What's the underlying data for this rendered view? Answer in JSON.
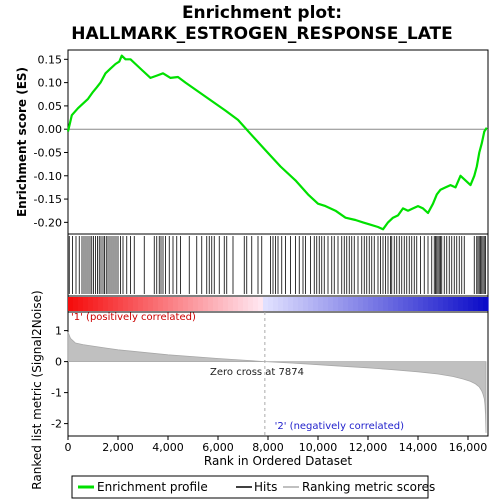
{
  "chart_data": {
    "type": "line",
    "title_lines": [
      "Enrichment plot:",
      "HALLMARK_ESTROGEN_RESPONSE_LATE"
    ],
    "ylabel_top": "Enrichment score (ES)",
    "ylabel_bottom": "Ranked list metric (Signal2Noise)",
    "xlabel": "Rank in Ordered Dataset",
    "xlim": [
      0,
      16800
    ],
    "es_ylim": [
      -0.225,
      0.17
    ],
    "metric_ylim": [
      -2.4,
      1.6
    ],
    "x_ticks": [
      0,
      2000,
      4000,
      6000,
      8000,
      10000,
      12000,
      14000,
      16000
    ],
    "x_tick_labels": [
      "0",
      "2,000",
      "4,000",
      "6,000",
      "8,000",
      "10,000",
      "12,000",
      "14,000",
      "16,000"
    ],
    "es_ticks": [
      0.15,
      0.1,
      0.05,
      0.0,
      -0.05,
      -0.1,
      -0.15,
      -0.2
    ],
    "es_tick_labels": [
      "0.15",
      "0.10",
      "0.05",
      "0.00",
      "-0.05",
      "-0.10",
      "-0.15",
      "-0.20"
    ],
    "metric_ticks": [
      1,
      0,
      -1,
      -2
    ],
    "metric_tick_labels": [
      "1",
      "0",
      "-1",
      "-2"
    ],
    "zero_cross_rank": 7874,
    "zero_cross_label": "Zero cross at 7874",
    "positive_label": "'1' (positively correlated)",
    "negative_label": "'2' (negatively correlated)",
    "series": [
      {
        "name": "Enrichment profile",
        "color": "#00e000",
        "x": [
          0,
          150,
          400,
          600,
          800,
          1000,
          1150,
          1300,
          1500,
          1700,
          1900,
          2050,
          2150,
          2300,
          2500,
          2700,
          3000,
          3300,
          3550,
          3800,
          4100,
          4400,
          4700,
          5100,
          5500,
          5900,
          6300,
          6800,
          7300,
          7900,
          8500,
          9100,
          9600,
          10000,
          10300,
          10700,
          11100,
          11500,
          11800,
          12100,
          12400,
          12600,
          12800,
          13000,
          13200,
          13400,
          13600,
          13800,
          14000,
          14200,
          14400,
          14600,
          14750,
          14900,
          15100,
          15300,
          15500,
          15700,
          15900,
          16100,
          16250,
          16350,
          16450,
          16550,
          16650,
          16750
        ],
        "y": [
          -0.005,
          0.03,
          0.045,
          0.055,
          0.065,
          0.08,
          0.09,
          0.1,
          0.12,
          0.13,
          0.14,
          0.145,
          0.158,
          0.15,
          0.15,
          0.14,
          0.125,
          0.11,
          0.115,
          0.12,
          0.11,
          0.112,
          0.1,
          0.085,
          0.07,
          0.055,
          0.04,
          0.02,
          -0.01,
          -0.045,
          -0.08,
          -0.11,
          -0.14,
          -0.16,
          -0.165,
          -0.175,
          -0.19,
          -0.195,
          -0.2,
          -0.205,
          -0.21,
          -0.215,
          -0.2,
          -0.19,
          -0.185,
          -0.17,
          -0.175,
          -0.17,
          -0.165,
          -0.17,
          -0.18,
          -0.16,
          -0.14,
          -0.13,
          -0.125,
          -0.12,
          -0.125,
          -0.1,
          -0.11,
          -0.12,
          -0.1,
          -0.08,
          -0.05,
          -0.03,
          -0.005,
          0.003
        ]
      }
    ],
    "hits": [
      50,
      180,
      320,
      450,
      560,
      640,
      720,
      800,
      880,
      950,
      1020,
      1100,
      1180,
      1250,
      1320,
      1400,
      1460,
      1530,
      1600,
      1680,
      1760,
      1840,
      1920,
      2000,
      2100,
      2200,
      2350,
      2500,
      2650,
      3050,
      3450,
      3550,
      3650,
      3720,
      3800,
      3900,
      4050,
      4200,
      4350,
      4500,
      4850,
      5150,
      5350,
      5550,
      5650,
      5750,
      5850,
      6050,
      6250,
      6350,
      6600,
      7050,
      7150,
      7350,
      7600,
      7750,
      8100,
      8200,
      8300,
      8400,
      8550,
      8700,
      8900,
      9100,
      9250,
      9400,
      9500,
      9700,
      9850,
      9950,
      10050,
      10150,
      10250,
      10400,
      10550,
      10650,
      10800,
      10950,
      11050,
      11150,
      11250,
      11350,
      11450,
      11600,
      11750,
      11850,
      11950,
      12050,
      12150,
      12250,
      12400,
      12500,
      12600,
      12700,
      12800,
      12900,
      12950,
      13050,
      13150,
      13250,
      13350,
      13450,
      13550,
      13650,
      13750,
      13850,
      13950,
      14100,
      14250,
      14400,
      14550,
      14650,
      14700,
      14750,
      14800,
      14850,
      14900,
      14950,
      15050,
      15150,
      15250,
      15350,
      15450,
      15550,
      15650,
      15750,
      15850,
      16250,
      16350,
      16400,
      16450,
      16500,
      16550,
      16600,
      16650,
      16700
    ],
    "metric": {
      "x": [
        0,
        100,
        300,
        600,
        1000,
        1500,
        2000,
        3000,
        4000,
        5000,
        6000,
        7000,
        7874,
        9000,
        10000,
        11000,
        12000,
        13000,
        14000,
        14800,
        15400,
        15800,
        16100,
        16300,
        16450,
        16550,
        16600,
        16650,
        16680,
        16700,
        16720
      ],
      "y": [
        0.95,
        0.75,
        0.6,
        0.55,
        0.5,
        0.44,
        0.38,
        0.3,
        0.22,
        0.16,
        0.1,
        0.05,
        0.0,
        -0.05,
        -0.1,
        -0.15,
        -0.2,
        -0.26,
        -0.33,
        -0.4,
        -0.48,
        -0.56,
        -0.64,
        -0.72,
        -0.82,
        -0.95,
        -1.05,
        -1.2,
        -1.4,
        -1.7,
        -2.3
      ]
    }
  },
  "legend": {
    "items": [
      "Enrichment profile",
      "Hits",
      "Ranking metric scores"
    ],
    "colors": [
      "#00e000",
      "#000000",
      "#c0c0c0"
    ]
  }
}
